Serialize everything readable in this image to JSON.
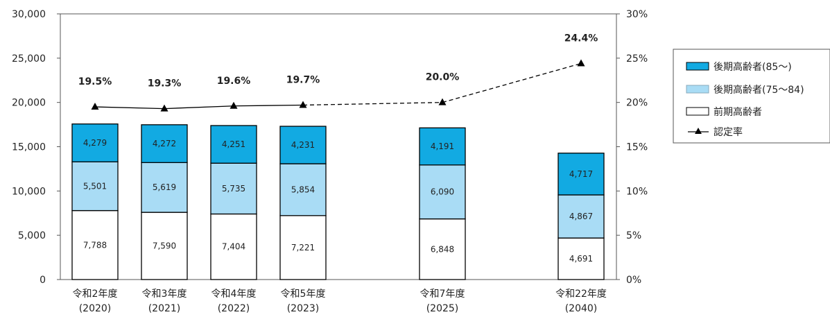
{
  "chart_data": {
    "type": "bar",
    "stacked": true,
    "categories": [
      [
        "令和2年度",
        "(2020)"
      ],
      [
        "令和3年度",
        "(2021)"
      ],
      [
        "令和4年度",
        "(2022)"
      ],
      [
        "令和5年度",
        "(2023)"
      ],
      [
        "令和7年度",
        "(2025)"
      ],
      [
        "令和22年度",
        "(2040)"
      ]
    ],
    "series": [
      {
        "name": "前期高齢者",
        "values": [
          7788,
          7590,
          7404,
          7221,
          6848,
          4691
        ],
        "labels": [
          "7,788",
          "7,590",
          "7,404",
          "7,221",
          "6,848",
          "4,691"
        ],
        "color": "#ffffff"
      },
      {
        "name": "後期高齢者(75〜84)",
        "values": [
          5501,
          5619,
          5735,
          5854,
          6090,
          4867
        ],
        "labels": [
          "5,501",
          "5,619",
          "5,735",
          "5,854",
          "6,090",
          "4,867"
        ],
        "color": "#a9dcf5"
      },
      {
        "name": "後期高齢者(85〜)",
        "values": [
          4279,
          4272,
          4251,
          4231,
          4191,
          4717
        ],
        "labels": [
          "4,279",
          "4,272",
          "4,251",
          "4,231",
          "4,191",
          "4,717"
        ],
        "color": "#12aae2"
      }
    ],
    "line_series": {
      "name": "認定率",
      "values": [
        19.5,
        19.3,
        19.6,
        19.7,
        20.0,
        24.4
      ],
      "labels": [
        "19.5%",
        "19.3%",
        "19.6%",
        "19.7%",
        "20.0%",
        "24.4%"
      ],
      "projected_from_index": 3
    },
    "ylim": [
      0,
      30000
    ],
    "y_ticks": [
      "0",
      "5,000",
      "10,000",
      "15,000",
      "20,000",
      "25,000",
      "30,000"
    ],
    "y2lim": [
      0,
      30
    ],
    "y2_ticks": [
      "0%",
      "5%",
      "10%",
      "15%",
      "20%",
      "25%",
      "30%"
    ],
    "legend": {
      "placement": "right",
      "items": [
        "後期高齢者(85〜)",
        "後期高齢者(75〜84)",
        "前期高齢者",
        "認定率"
      ]
    },
    "grid": false
  }
}
